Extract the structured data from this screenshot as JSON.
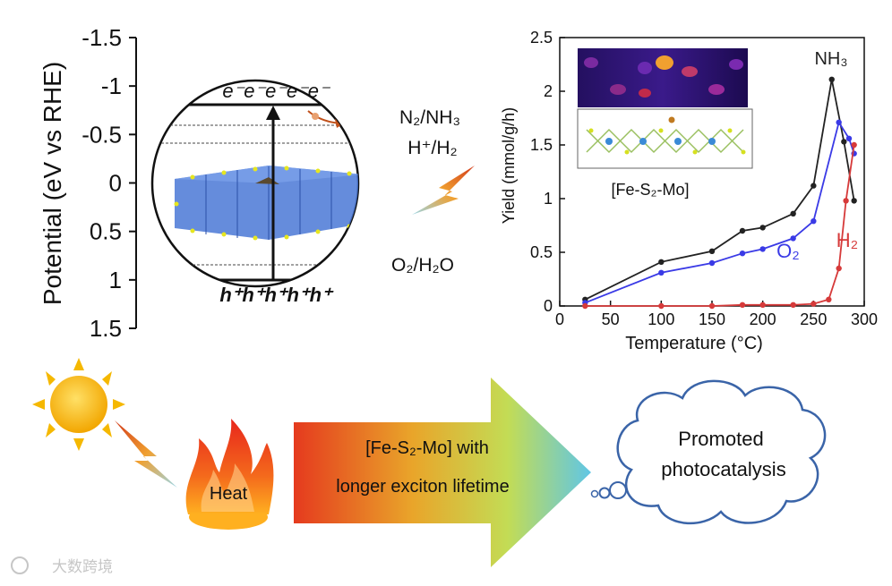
{
  "band_diagram": {
    "ylabel": "Potential (eV vs RHE)",
    "ticks": [
      "-1.5",
      "-1",
      "-0.5",
      "0",
      "0.5",
      "1",
      "1.5"
    ],
    "cb_label": "e⁻e⁻e⁻e⁻e⁻",
    "vb_label": "h⁺h⁺h⁺h⁺h⁺",
    "redox_top_1": "N₂/NH₃",
    "redox_top_2": "H⁺/H₂",
    "redox_bottom": "O₂/H₂O"
  },
  "chart_data": {
    "type": "line",
    "xlabel": "Temperature (°C)",
    "ylabel": "Yield (mmol/g/h)",
    "xlim": [
      0,
      300
    ],
    "ylim": [
      0,
      2.5
    ],
    "xticks": [
      "0",
      "50",
      "100",
      "150",
      "200",
      "250",
      "300"
    ],
    "yticks": [
      "0",
      "0.5",
      "1",
      "1.5",
      "2",
      "2.5"
    ],
    "inset_label": "[Fe-S₂-Mo]",
    "series": [
      {
        "name": "NH₃",
        "color": "#222222",
        "x": [
          25,
          100,
          150,
          180,
          200,
          230,
          250,
          268,
          280,
          290
        ],
        "y": [
          0.06,
          0.41,
          0.51,
          0.7,
          0.73,
          0.86,
          1.12,
          2.11,
          1.53,
          0.98
        ]
      },
      {
        "name": "O₂",
        "color": "#3a3ae6",
        "x": [
          25,
          100,
          150,
          180,
          200,
          230,
          250,
          275,
          285,
          290
        ],
        "y": [
          0.03,
          0.31,
          0.4,
          0.49,
          0.53,
          0.63,
          0.79,
          1.71,
          1.56,
          1.42
        ]
      },
      {
        "name": "H₂",
        "color": "#d63a3a",
        "x": [
          25,
          100,
          150,
          180,
          200,
          230,
          250,
          265,
          275,
          282,
          290
        ],
        "y": [
          0.0,
          0.0,
          0.0,
          0.01,
          0.01,
          0.01,
          0.02,
          0.06,
          0.35,
          0.98,
          1.5
        ]
      }
    ]
  },
  "flow": {
    "heat_label": "Heat",
    "arrow_line1": "[Fe-S₂-Mo] with",
    "arrow_line2": "longer exciton lifetime",
    "result_line1": "Promoted",
    "result_line2": "photocatalysis"
  },
  "watermark": "大数跨境"
}
